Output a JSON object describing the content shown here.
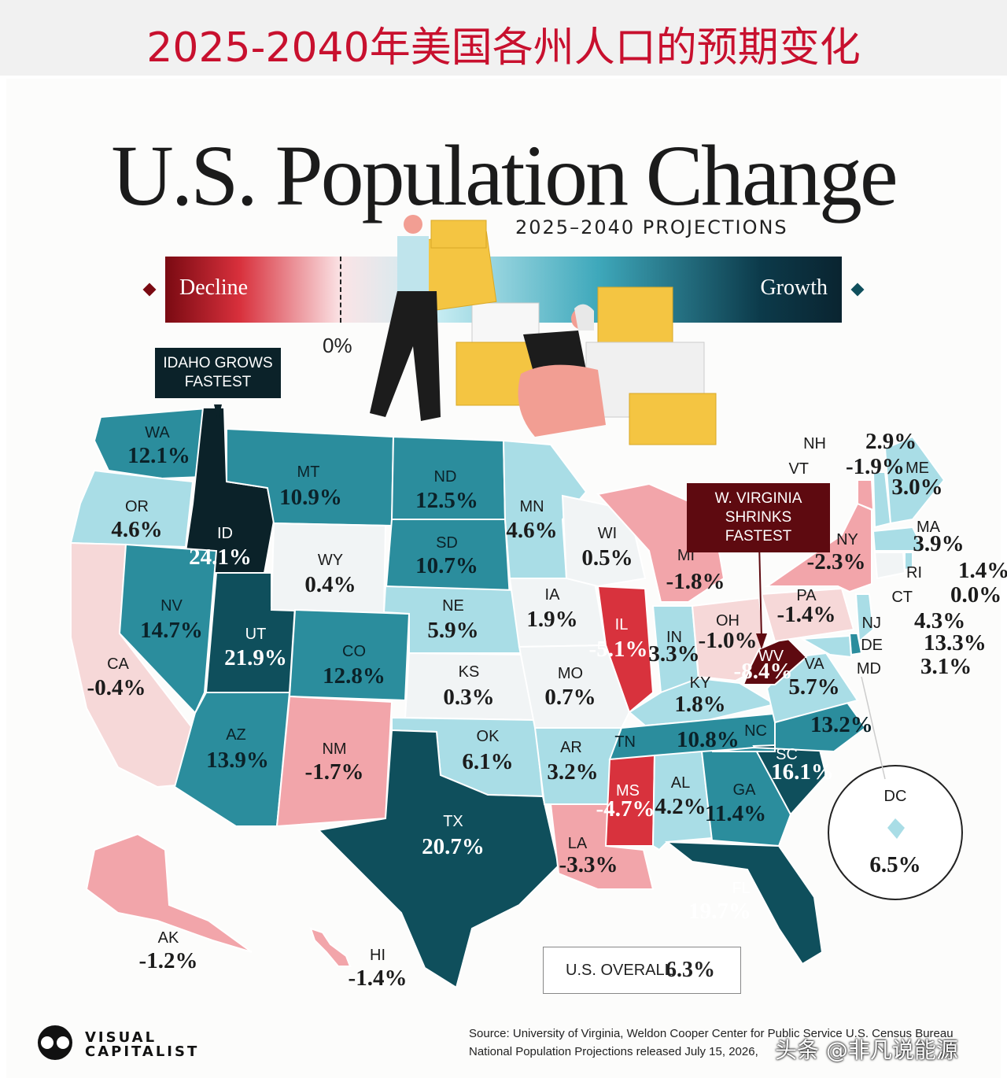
{
  "banner": {
    "title": "2025-2040年美国各州人口的预期变化"
  },
  "poster": {
    "title": "U.S. Population Change",
    "subtitle": "2025–2040 PROJECTIONS"
  },
  "legend": {
    "left": "Decline",
    "right": "Growth",
    "zero": "0%"
  },
  "callouts": {
    "idaho": "IDAHO GROWS FASTEST",
    "wv": "W. VIRGINIA SHRINKS FASTEST"
  },
  "overall": {
    "label": "U.S. OVERALL",
    "value": "6.3%"
  },
  "source": {
    "line1": "Source: University of Virginia, Weldon Cooper Center for Public Service U.S. Census Bureau",
    "line2": "National Population Projections released July 15, 2026,"
  },
  "brand": {
    "line1": "VISUAL",
    "line2": "CAPITALIST"
  },
  "watermark": "头条 @非凡说能源",
  "colors": {
    "dark_red": "#5e0a10",
    "red": "#d8323d",
    "pink": "#f2a5aa",
    "light_pink": "#f6d8d8",
    "white": "#f1f4f5",
    "light_teal": "#a9dde6",
    "teal": "#2b8d9d",
    "dark_teal": "#0f4f5c",
    "darkest": "#0b2229"
  },
  "states": [
    {
      "abbr": "WA",
      "value": "12.1%",
      "pct": 12.1
    },
    {
      "abbr": "OR",
      "value": "4.6%",
      "pct": 4.6
    },
    {
      "abbr": "CA",
      "value": "-0.4%",
      "pct": -0.4
    },
    {
      "abbr": "ID",
      "value": "24.1%",
      "pct": 24.1
    },
    {
      "abbr": "NV",
      "value": "14.7%",
      "pct": 14.7
    },
    {
      "abbr": "UT",
      "value": "21.9%",
      "pct": 21.9
    },
    {
      "abbr": "AZ",
      "value": "13.9%",
      "pct": 13.9
    },
    {
      "abbr": "MT",
      "value": "10.9%",
      "pct": 10.9
    },
    {
      "abbr": "WY",
      "value": "0.4%",
      "pct": 0.4
    },
    {
      "abbr": "CO",
      "value": "12.8%",
      "pct": 12.8
    },
    {
      "abbr": "NM",
      "value": "-1.7%",
      "pct": -1.7
    },
    {
      "abbr": "ND",
      "value": "12.5%",
      "pct": 12.5
    },
    {
      "abbr": "SD",
      "value": "10.7%",
      "pct": 10.7
    },
    {
      "abbr": "NE",
      "value": "5.9%",
      "pct": 5.9
    },
    {
      "abbr": "KS",
      "value": "0.3%",
      "pct": 0.3
    },
    {
      "abbr": "OK",
      "value": "6.1%",
      "pct": 6.1
    },
    {
      "abbr": "TX",
      "value": "20.7%",
      "pct": 20.7
    },
    {
      "abbr": "MN",
      "value": "4.6%",
      "pct": 4.6
    },
    {
      "abbr": "IA",
      "value": "1.9%",
      "pct": 1.9
    },
    {
      "abbr": "MO",
      "value": "0.7%",
      "pct": 0.7
    },
    {
      "abbr": "AR",
      "value": "3.2%",
      "pct": 3.2
    },
    {
      "abbr": "LA",
      "value": "-3.3%",
      "pct": -3.3
    },
    {
      "abbr": "WI",
      "value": "0.5%",
      "pct": 0.5
    },
    {
      "abbr": "IL",
      "value": "-5.1%",
      "pct": -5.1
    },
    {
      "abbr": "MI",
      "value": "-1.8%",
      "pct": -1.8
    },
    {
      "abbr": "IN",
      "value": "3.3%",
      "pct": 3.3
    },
    {
      "abbr": "OH",
      "value": "-1.0%",
      "pct": -1.0
    },
    {
      "abbr": "KY",
      "value": "1.8%",
      "pct": 1.8
    },
    {
      "abbr": "TN",
      "value": "10.8%",
      "pct": 10.8
    },
    {
      "abbr": "MS",
      "value": "-4.7%",
      "pct": -4.7
    },
    {
      "abbr": "AL",
      "value": "4.2%",
      "pct": 4.2
    },
    {
      "abbr": "GA",
      "value": "11.4%",
      "pct": 11.4
    },
    {
      "abbr": "FL",
      "value": "19.7%",
      "pct": 19.7
    },
    {
      "abbr": "SC",
      "value": "16.1%",
      "pct": 16.1
    },
    {
      "abbr": "NC",
      "value": "13.2%",
      "pct": 13.2
    },
    {
      "abbr": "VA",
      "value": "5.7%",
      "pct": 5.7
    },
    {
      "abbr": "WV",
      "value": "-8.4%",
      "pct": -8.4
    },
    {
      "abbr": "PA",
      "value": "-1.4%",
      "pct": -1.4
    },
    {
      "abbr": "NY",
      "value": "-2.3%",
      "pct": -2.3
    },
    {
      "abbr": "NH",
      "value": "2.9%",
      "pct": 2.9
    },
    {
      "abbr": "VT",
      "value": "-1.9%",
      "pct": -1.9
    },
    {
      "abbr": "ME",
      "value": "3.0%",
      "pct": 3.0
    },
    {
      "abbr": "MA",
      "value": "3.9%",
      "pct": 3.9
    },
    {
      "abbr": "RI",
      "value": "1.4%",
      "pct": 1.4
    },
    {
      "abbr": "CT",
      "value": "0.0%",
      "pct": 0.0
    },
    {
      "abbr": "NJ",
      "value": "4.3%",
      "pct": 4.3
    },
    {
      "abbr": "DE",
      "value": "13.3%",
      "pct": 13.3
    },
    {
      "abbr": "MD",
      "value": "3.1%",
      "pct": 3.1
    },
    {
      "abbr": "DC",
      "value": "6.5%",
      "pct": 6.5
    },
    {
      "abbr": "AK",
      "value": "-1.2%",
      "pct": -1.2
    },
    {
      "abbr": "HI",
      "value": "-1.4%",
      "pct": -1.4
    }
  ]
}
